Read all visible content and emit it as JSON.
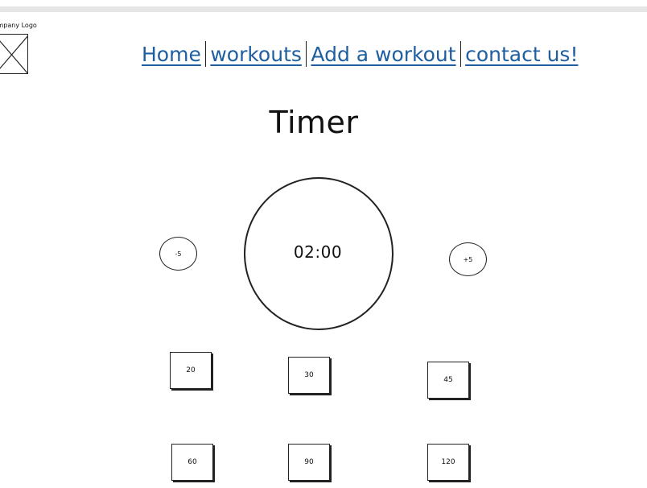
{
  "logo": {
    "text": "Company Logo",
    "icon": "image-placeholder-icon"
  },
  "nav": {
    "items": [
      {
        "label": "Home"
      },
      {
        "label": "workouts"
      },
      {
        "label": "Add a workout"
      },
      {
        "label": "contact us!"
      }
    ],
    "link_color": "#1f5fa0"
  },
  "page": {
    "title": "Timer"
  },
  "timer": {
    "display": "02:00",
    "decrement_label": "-5",
    "increment_label": "+5"
  },
  "presets": {
    "items": [
      {
        "label": "20"
      },
      {
        "label": "30"
      },
      {
        "label": "45"
      },
      {
        "label": "60"
      },
      {
        "label": "90"
      },
      {
        "label": "120"
      }
    ]
  }
}
